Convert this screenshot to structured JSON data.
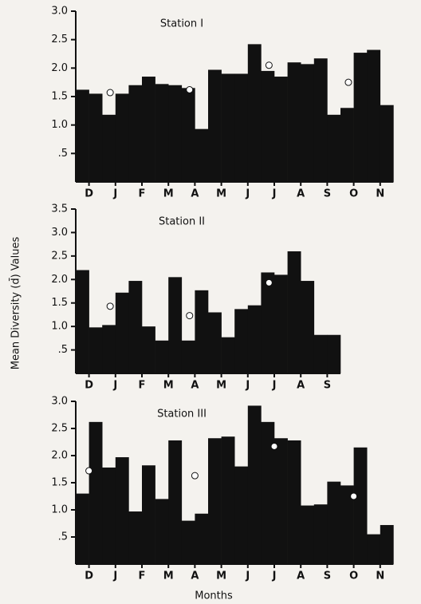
{
  "chart_data": [
    {
      "type": "bar",
      "title": "Station I",
      "color": "#111111",
      "categories": [
        "D",
        null,
        "J",
        null,
        "F",
        null,
        "M",
        null,
        "A",
        null,
        "M",
        null,
        "J",
        null,
        "J",
        null,
        "A",
        null,
        "S",
        null,
        "O",
        null,
        "N",
        null
      ],
      "values": [
        1.62,
        1.55,
        1.18,
        1.55,
        1.7,
        1.85,
        1.72,
        1.7,
        1.65,
        0.93,
        1.97,
        1.9,
        1.9,
        2.42,
        1.95,
        1.85,
        2.1,
        2.07,
        2.17,
        1.18,
        1.3,
        2.27,
        2.32,
        1.35
      ],
      "markers": [
        null,
        null,
        1.57,
        null,
        null,
        null,
        null,
        null,
        1.62,
        null,
        null,
        null,
        null,
        null,
        2.05,
        null,
        null,
        null,
        null,
        null,
        1.75,
        null,
        null,
        null
      ],
      "ylim": [
        0,
        3.0
      ],
      "yticks": [
        {
          "value": 0.5,
          "label": ".5"
        },
        {
          "value": 1,
          "label": "1.0"
        },
        1.5,
        {
          "value": 2,
          "label": "2.0"
        },
        2.5,
        {
          "value": 3,
          "label": "3.0"
        }
      ]
    },
    {
      "type": "bar",
      "title": "Station II",
      "color": "#111111",
      "ylabel": "Mean Diversity (d̄) Values",
      "categories": [
        "D",
        null,
        "J",
        null,
        "F",
        null,
        "M",
        null,
        "A",
        null,
        "M",
        null,
        "J",
        null,
        "J",
        null,
        "A",
        null,
        "S",
        null
      ],
      "values": [
        2.2,
        0.98,
        1.03,
        1.72,
        1.97,
        1.0,
        0.7,
        2.05,
        0.7,
        1.77,
        1.3,
        0.77,
        1.37,
        1.45,
        2.15,
        2.1,
        2.6,
        1.97,
        0.82,
        0.82
      ],
      "markers": [
        null,
        null,
        1.43,
        null,
        null,
        null,
        null,
        null,
        1.23,
        null,
        null,
        null,
        null,
        null,
        1.93,
        null,
        null,
        null,
        null,
        null
      ],
      "ylim": [
        0,
        3.5
      ],
      "yticks": [
        {
          "value": 0.5,
          "label": ".5"
        },
        {
          "value": 1,
          "label": "1.0"
        },
        1.5,
        {
          "value": 2,
          "label": "2.0"
        },
        2.5,
        {
          "value": 3,
          "label": "3.0"
        },
        3.5
      ]
    },
    {
      "type": "bar",
      "title": "Station III",
      "color": "#111111",
      "xlabel": "Months",
      "categories": [
        "D",
        null,
        "J",
        null,
        "F",
        null,
        "M",
        null,
        "A",
        null,
        "M",
        null,
        "J",
        null,
        "J",
        null,
        "A",
        null,
        "S",
        null,
        "O",
        null,
        "N",
        null
      ],
      "values": [
        1.3,
        2.62,
        1.78,
        1.97,
        0.97,
        1.82,
        1.2,
        2.28,
        0.8,
        0.93,
        2.32,
        2.35,
        1.8,
        2.92,
        2.62,
        2.32,
        2.28,
        1.08,
        1.1,
        1.52,
        1.45,
        2.15,
        0.55,
        0.72
      ],
      "markers": [
        1.72,
        null,
        null,
        null,
        null,
        null,
        null,
        null,
        1.63,
        null,
        null,
        null,
        null,
        null,
        2.17,
        null,
        null,
        null,
        null,
        null,
        1.25,
        null,
        null,
        null
      ],
      "ylim": [
        0,
        3.0
      ],
      "yticks": [
        {
          "value": 0.5,
          "label": ".5"
        },
        {
          "value": 1,
          "label": "1.0"
        },
        1.5,
        {
          "value": 2,
          "label": "2.0"
        },
        2.5,
        {
          "value": 3,
          "label": "3.0"
        }
      ]
    }
  ]
}
